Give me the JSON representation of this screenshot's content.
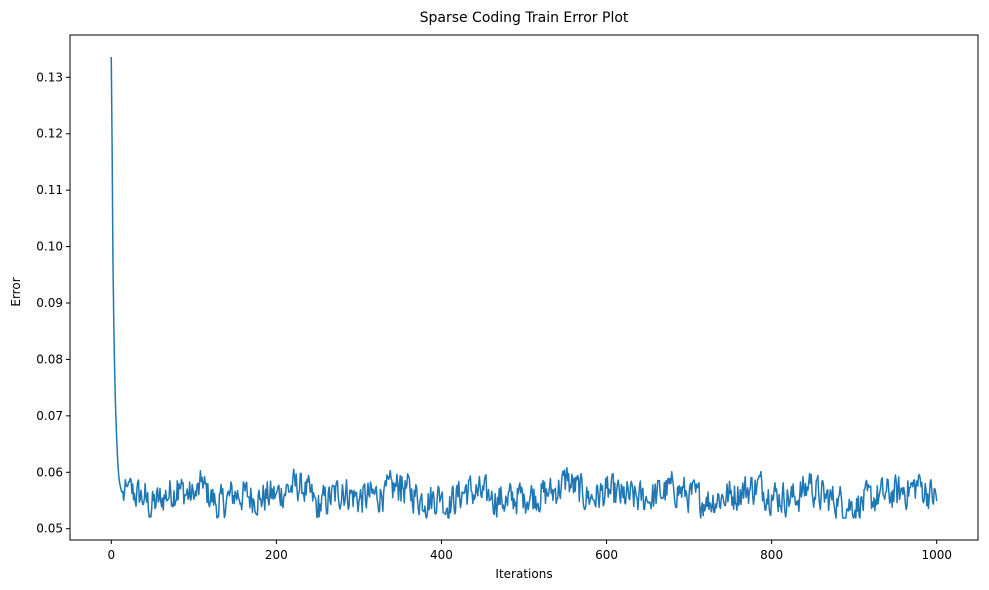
{
  "chart_data": {
    "type": "line",
    "title": "Sparse Coding Train Error Plot",
    "xlabel": "Iterations",
    "ylabel": "Error",
    "xlim": [
      -50,
      1050
    ],
    "ylim": [
      0.048,
      0.1375
    ],
    "x_ticks": [
      0,
      200,
      400,
      600,
      800,
      1000
    ],
    "x_tick_labels": [
      "0",
      "200",
      "400",
      "600",
      "800",
      "1000"
    ],
    "y_ticks": [
      0.05,
      0.06,
      0.07,
      0.08,
      0.09,
      0.1,
      0.11,
      0.12,
      0.13
    ],
    "y_tick_labels": [
      "0.05",
      "0.06",
      "0.07",
      "0.08",
      "0.09",
      "0.10",
      "0.11",
      "0.12",
      "0.13"
    ],
    "grid": false,
    "legend": "none",
    "series": [
      {
        "color": "#1f77b4",
        "x_start": 0,
        "x_step": 1,
        "initial_values": [
          0.1336,
          0.118,
          0.098,
          0.087,
          0.0785,
          0.0725,
          0.068,
          0.0645,
          0.0615,
          0.0595,
          0.0582,
          0.0575,
          0.0568,
          0.0565
        ],
        "steady_mean": 0.0558,
        "steady_min": 0.0519,
        "steady_max": 0.0608,
        "steady_points": [
          [
            20,
            0.0576
          ],
          [
            40,
            0.0552
          ],
          [
            48,
            0.0521
          ],
          [
            60,
            0.0548
          ],
          [
            80,
            0.0585
          ],
          [
            100,
            0.0552
          ],
          [
            110,
            0.0591
          ],
          [
            130,
            0.0521
          ],
          [
            150,
            0.0566
          ],
          [
            180,
            0.0552
          ],
          [
            200,
            0.0563
          ],
          [
            220,
            0.059
          ],
          [
            230,
            0.0598
          ],
          [
            250,
            0.052
          ],
          [
            280,
            0.0578
          ],
          [
            300,
            0.0548
          ],
          [
            330,
            0.0565
          ],
          [
            350,
            0.0594
          ],
          [
            380,
            0.054
          ],
          [
            400,
            0.056
          ],
          [
            405,
            0.0525
          ],
          [
            430,
            0.0578
          ],
          [
            460,
            0.0553
          ],
          [
            480,
            0.0541
          ],
          [
            500,
            0.0561
          ],
          [
            530,
            0.0563
          ],
          [
            552,
            0.0608
          ],
          [
            580,
            0.0549
          ],
          [
            600,
            0.0572
          ],
          [
            620,
            0.0555
          ],
          [
            650,
            0.0546
          ],
          [
            680,
            0.0588
          ],
          [
            700,
            0.0561
          ],
          [
            720,
            0.0539
          ],
          [
            750,
            0.0562
          ],
          [
            785,
            0.0594
          ],
          [
            800,
            0.056
          ],
          [
            830,
            0.0548
          ],
          [
            846,
            0.0598
          ],
          [
            860,
            0.0557
          ],
          [
            880,
            0.054
          ],
          [
            900,
            0.0521
          ],
          [
            930,
            0.0557
          ],
          [
            960,
            0.0573
          ],
          [
            978,
            0.0594
          ],
          [
            1000,
            0.0549
          ]
        ]
      }
    ]
  }
}
